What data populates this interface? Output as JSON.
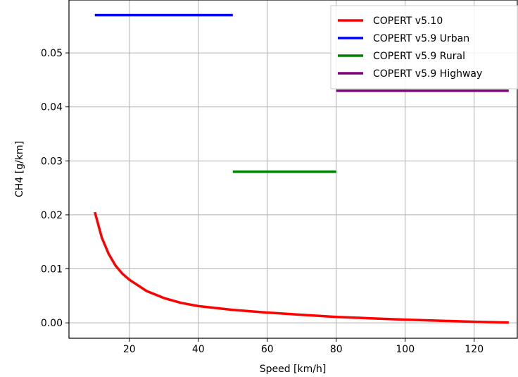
{
  "chart_data": {
    "type": "line",
    "xlabel": "Speed [km/h]",
    "ylabel": "CH4 [g/km]",
    "xlim": [
      2.5,
      132.5
    ],
    "ylim": [
      -0.00285,
      0.0598
    ],
    "x_ticks": [
      20,
      40,
      60,
      80,
      100,
      120
    ],
    "y_ticks": [
      0.0,
      0.01,
      0.02,
      0.03,
      0.04,
      0.05
    ],
    "y_tick_format": 2,
    "grid": true,
    "legend_position": "upper right",
    "series": [
      {
        "name": "COPERT v5.10",
        "color": "#ff0000",
        "x": [
          10,
          12,
          14,
          16,
          18,
          20,
          25,
          30,
          35,
          40,
          50,
          60,
          70,
          80,
          90,
          100,
          110,
          120,
          130
        ],
        "y": [
          0.0205,
          0.0158,
          0.0128,
          0.0106,
          0.0091,
          0.008,
          0.0059,
          0.0046,
          0.0037,
          0.0031,
          0.0024,
          0.0019,
          0.0015,
          0.0011,
          0.00085,
          0.0006,
          0.0004,
          0.0002,
          5e-05
        ]
      },
      {
        "name": "COPERT v5.9 Urban",
        "color": "#0000ff",
        "x": [
          10,
          50
        ],
        "y": [
          0.057,
          0.057
        ]
      },
      {
        "name": "COPERT v5.9 Rural",
        "color": "#008000",
        "x": [
          50,
          80
        ],
        "y": [
          0.028,
          0.028
        ]
      },
      {
        "name": "COPERT v5.9 Highway",
        "color": "#800080",
        "x": [
          80,
          130
        ],
        "y": [
          0.043,
          0.043
        ]
      }
    ]
  }
}
